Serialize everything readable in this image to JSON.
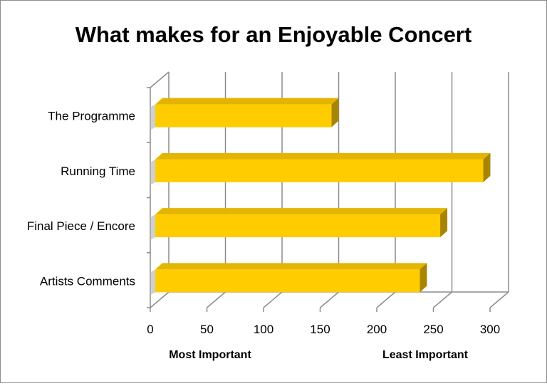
{
  "chart_data": {
    "type": "bar",
    "orientation": "horizontal",
    "style": "3d",
    "title": "What makes for an Enjoyable Concert",
    "categories": [
      "The Programme",
      "Running Time",
      "Final Piece / Encore",
      "Artists Comments"
    ],
    "series": [
      {
        "values": [
          160,
          294,
          256,
          238
        ]
      }
    ],
    "xlim": [
      0,
      300
    ],
    "xticks": [
      "0",
      "50",
      "100",
      "150",
      "200",
      "250",
      "300"
    ],
    "grid": true,
    "legend": "none",
    "annotations": {
      "left": "Most Important",
      "right": "Least Important"
    },
    "colors": {
      "bar_front": "#ffcc00",
      "bar_top": "#e3b400",
      "bar_side": "#a88500",
      "grid": "#8c8c8c",
      "text": "#000000"
    }
  }
}
